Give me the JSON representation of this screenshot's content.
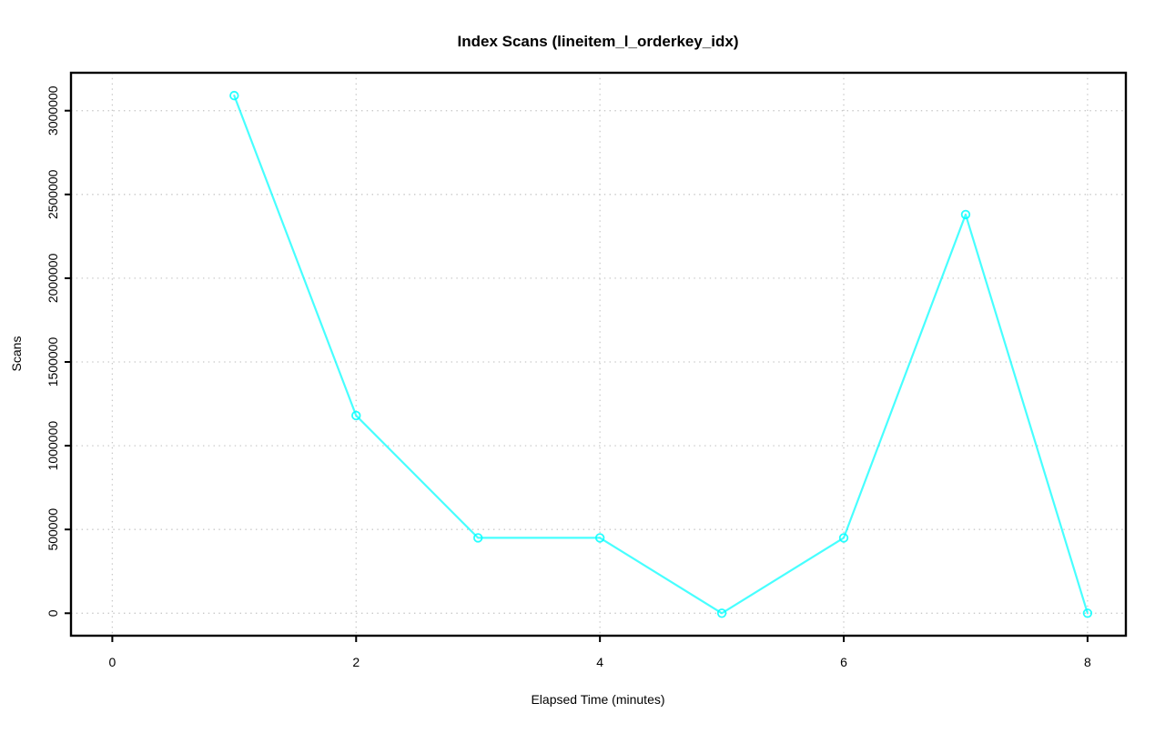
{
  "page": {
    "background": "#ffffff"
  },
  "chart_data": {
    "type": "line",
    "title": "Index Scans (lineitem_l_orderkey_idx)",
    "xlabel": "Elapsed Time (minutes)",
    "ylabel": "Scans",
    "x": [
      1,
      2,
      3,
      4,
      5,
      6,
      7,
      8
    ],
    "y": [
      3090000,
      1180000,
      450000,
      450000,
      0,
      450000,
      2380000,
      0
    ],
    "xticks": [
      0,
      2,
      4,
      6,
      8
    ],
    "xtick_labels": [
      "0",
      "2",
      "4",
      "6",
      "8"
    ],
    "yticks": [
      0,
      500000,
      1000000,
      1500000,
      2000000,
      2500000,
      3000000
    ],
    "ytick_labels": [
      "0",
      "500000",
      "1000000",
      "1500000",
      "2000000",
      "2500000",
      "3000000"
    ],
    "xlim": [
      0,
      8.3
    ],
    "ylim": [
      0,
      3100000
    ],
    "grid": "dotted",
    "legend": "none",
    "marker": "open-circle",
    "colors": {
      "series": "#00ffff",
      "grid": "#c8c8c8",
      "axis": "#000000",
      "title": "#000000",
      "background": "#ffffff"
    }
  }
}
